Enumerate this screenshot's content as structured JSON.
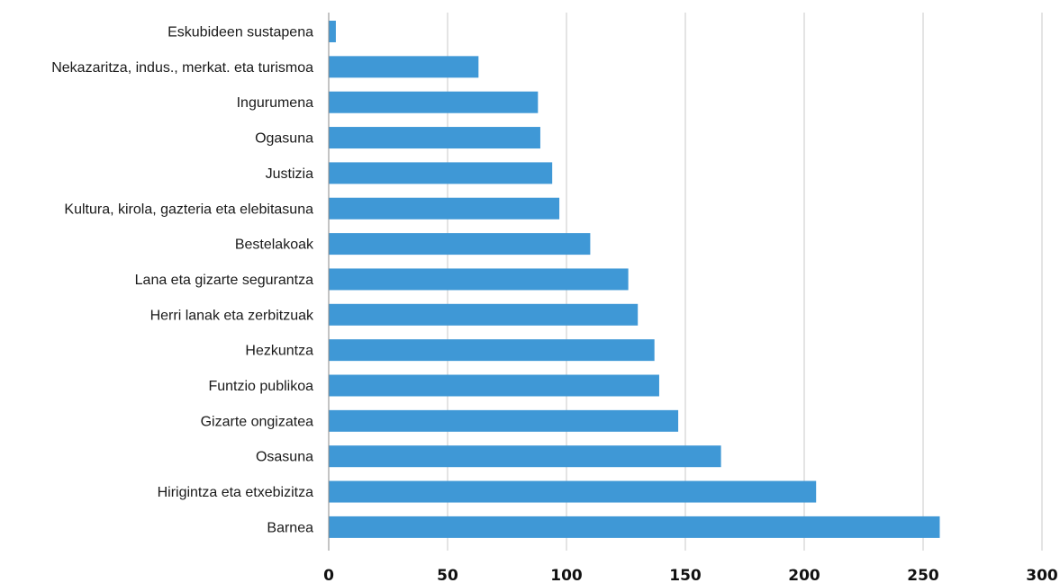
{
  "chart_data": {
    "type": "bar",
    "orientation": "horizontal",
    "categories": [
      "Eskubideen sustapena",
      "Nekazaritza, indus., merkat. eta turismoa",
      "Ingurumena",
      "Ogasuna",
      "Justizia",
      "Kultura, kirola, gazteria eta elebitasuna",
      "Bestelakoak",
      "Lana eta gizarte segurantza",
      "Herri lanak eta zerbitzuak",
      "Hezkuntza",
      "Funtzio publikoa",
      "Gizarte ongizatea",
      "Osasuna",
      "Hirigintza eta etxebizitza",
      "Barnea"
    ],
    "values": [
      3,
      63,
      88,
      89,
      94,
      97,
      110,
      126,
      130,
      137,
      139,
      147,
      165,
      205,
      257
    ],
    "xlim": [
      0,
      300
    ],
    "x_ticks": [
      "0",
      "50",
      "100",
      "150",
      "200",
      "250",
      "300"
    ],
    "title": "",
    "xlabel": "",
    "ylabel": "",
    "grid": "vertical",
    "legend": "none",
    "bar_color": "#3f98d6"
  }
}
